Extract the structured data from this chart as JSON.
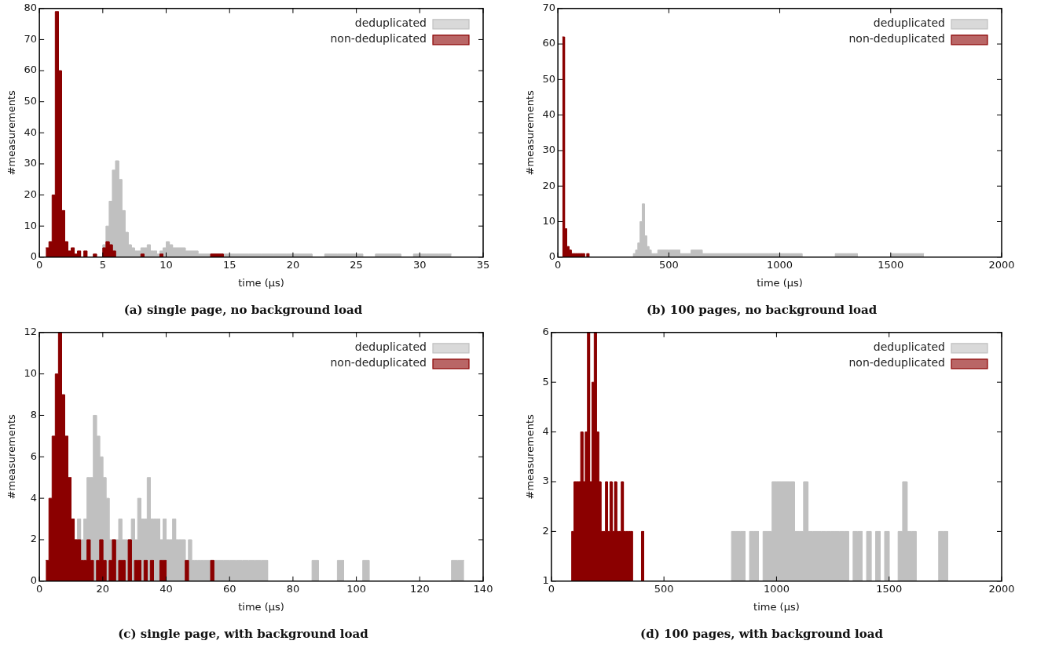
{
  "chart_data": [
    {
      "type": "histogram",
      "title": "(a) single page, no background load",
      "xlabel": "time (µs)",
      "ylabel": "#measurements",
      "legend": "top right",
      "xlim": [
        0,
        35
      ],
      "xticks": [
        0,
        5,
        10,
        15,
        20,
        25,
        30,
        35
      ],
      "ylim": [
        0,
        80
      ],
      "yticks": [
        0,
        10,
        20,
        30,
        40,
        50,
        60,
        70,
        80
      ],
      "bins": [
        0.5,
        0.75,
        1,
        1.25,
        1.5,
        1.75,
        2,
        2.25,
        2.5,
        2.75,
        3,
        3.25,
        3.5,
        3.75,
        4,
        4.25,
        4.5,
        4.75,
        5,
        5.25,
        5.5,
        5.75,
        6,
        6.25,
        6.5,
        6.75,
        7,
        7.25,
        7.5,
        7.75,
        8,
        8.25,
        8.5,
        8.75,
        9,
        9.25,
        9.5,
        9.75,
        10,
        10.25,
        10.5,
        11.5,
        12.5,
        13.5,
        14.5,
        15.5,
        16.5,
        17.5,
        18.5,
        19.5,
        20.5,
        21.5,
        22.5,
        23.5,
        24.5,
        25.5,
        26.5,
        27.5,
        28.5,
        29.5,
        30.5,
        31.5,
        32.5
      ],
      "series": [
        {
          "name": "deduplicated",
          "color": "#c0c0c0",
          "values": [
            0,
            0,
            0,
            0,
            0,
            0,
            0,
            0,
            0,
            0,
            0,
            0,
            0,
            0,
            0,
            0,
            0,
            0,
            4,
            10,
            18,
            28,
            31,
            25,
            15,
            8,
            4,
            3,
            2,
            2,
            3,
            3,
            4,
            2,
            2,
            1,
            2,
            3,
            5,
            4,
            3,
            2,
            1,
            1,
            1,
            1,
            1,
            1,
            1,
            1,
            1,
            0,
            1,
            1,
            1,
            0,
            1,
            1,
            0,
            1,
            1,
            1
          ]
        },
        {
          "name": "non-deduplicated",
          "color": "#8b0000",
          "values": [
            3,
            5,
            20,
            79,
            60,
            15,
            5,
            2,
            3,
            1,
            2,
            0,
            2,
            0,
            0,
            1,
            0,
            0,
            3,
            5,
            4,
            2,
            0,
            0,
            0,
            0,
            0,
            0,
            0,
            0,
            1,
            0,
            0,
            0,
            0,
            0,
            1,
            0,
            0,
            0,
            0,
            0,
            0,
            1,
            0,
            0,
            0,
            0,
            0,
            0,
            0,
            0,
            0,
            0,
            0,
            0,
            0,
            0,
            0,
            0,
            0,
            0
          ]
        }
      ]
    },
    {
      "type": "histogram",
      "title": "(b) 100 pages, no background load",
      "xlabel": "time (µs)",
      "ylabel": "#measurements",
      "legend": "top right",
      "xlim": [
        0,
        2000
      ],
      "xticks": [
        0,
        500,
        1000,
        1500,
        2000
      ],
      "ylim": [
        0,
        70
      ],
      "yticks": [
        0,
        10,
        20,
        30,
        40,
        50,
        60,
        70
      ],
      "bins": [
        20,
        30,
        40,
        50,
        60,
        70,
        80,
        90,
        100,
        110,
        120,
        130,
        140,
        150,
        330,
        340,
        350,
        360,
        370,
        380,
        390,
        400,
        410,
        420,
        430,
        440,
        450,
        500,
        550,
        600,
        650,
        700,
        750,
        800,
        850,
        900,
        950,
        1000,
        1050,
        1100,
        1150,
        1200,
        1250,
        1300,
        1350,
        1400,
        1450,
        1500,
        1550,
        1600,
        1650
      ],
      "series": [
        {
          "name": "deduplicated",
          "color": "#c0c0c0",
          "values": [
            0,
            0,
            0,
            0,
            0,
            0,
            0,
            0,
            0,
            0,
            0,
            0,
            0,
            0,
            0,
            1,
            2,
            4,
            10,
            15,
            6,
            3,
            2,
            1,
            1,
            1,
            2,
            2,
            1,
            2,
            1,
            1,
            1,
            1,
            1,
            1,
            1,
            1,
            1,
            0,
            0,
            0,
            1,
            1,
            0,
            0,
            0,
            1,
            1,
            1
          ]
        },
        {
          "name": "non-deduplicated",
          "color": "#8b0000",
          "values": [
            62,
            8,
            3,
            2,
            1,
            1,
            1,
            1,
            1,
            1,
            0,
            1,
            0,
            0,
            0,
            0,
            0,
            0,
            0,
            0,
            0,
            0,
            0,
            0,
            0,
            0,
            0,
            0,
            0,
            0,
            0,
            0,
            0,
            0,
            0,
            0,
            0,
            0,
            0,
            0,
            0,
            0,
            0,
            0,
            0,
            0,
            0,
            0,
            0,
            0
          ]
        }
      ]
    },
    {
      "type": "histogram",
      "title": "(c) single page, with background load",
      "xlabel": "time (µs)",
      "ylabel": "#measurements",
      "legend": "top right",
      "xlim": [
        0,
        140
      ],
      "xticks": [
        0,
        20,
        40,
        60,
        80,
        100,
        120,
        140
      ],
      "ylim": [
        0,
        12
      ],
      "yticks": [
        0,
        2,
        4,
        6,
        8,
        10,
        12
      ],
      "bins": [
        2,
        3,
        4,
        5,
        6,
        7,
        8,
        9,
        10,
        11,
        12,
        13,
        14,
        15,
        16,
        17,
        18,
        19,
        20,
        21,
        22,
        23,
        24,
        25,
        26,
        27,
        28,
        29,
        30,
        31,
        32,
        33,
        34,
        35,
        36,
        37,
        38,
        39,
        40,
        41,
        42,
        43,
        44,
        45,
        46,
        47,
        48,
        49,
        50,
        51,
        52,
        53,
        54,
        55,
        56,
        58,
        60,
        62,
        64,
        66,
        68,
        70,
        72,
        74,
        76,
        78,
        80,
        82,
        84,
        86,
        88,
        90,
        92,
        94,
        96,
        98,
        100,
        102,
        104,
        106,
        108,
        110,
        112,
        114,
        116,
        118,
        120,
        122,
        124,
        126,
        128,
        130,
        132,
        134
      ],
      "series": [
        {
          "name": "deduplicated",
          "color": "#c0c0c0",
          "values": [
            0,
            0,
            0,
            0,
            0,
            0,
            0,
            0,
            0,
            2,
            3,
            2,
            3,
            5,
            5,
            8,
            7,
            6,
            5,
            4,
            2,
            2,
            2,
            3,
            2,
            2,
            2,
            3,
            2,
            4,
            3,
            3,
            5,
            3,
            3,
            3,
            2,
            3,
            2,
            2,
            3,
            2,
            2,
            2,
            1,
            2,
            1,
            1,
            1,
            1,
            1,
            1,
            1,
            1,
            1,
            1,
            1,
            1,
            1,
            1,
            1,
            1,
            0,
            0,
            0,
            0,
            0,
            0,
            0,
            1,
            0,
            0,
            0,
            1,
            0,
            0,
            0,
            1,
            0,
            0,
            0,
            0,
            0,
            0,
            0,
            0,
            0,
            0,
            0,
            0,
            0,
            1,
            1
          ]
        },
        {
          "name": "non-deduplicated",
          "color": "#8b0000",
          "values": [
            1,
            4,
            7,
            10,
            12,
            9,
            7,
            5,
            3,
            2,
            2,
            1,
            1,
            2,
            1,
            0,
            1,
            2,
            1,
            0,
            1,
            2,
            0,
            1,
            1,
            0,
            2,
            0,
            1,
            1,
            0,
            1,
            0,
            1,
            0,
            0,
            1,
            1,
            0,
            0,
            0,
            0,
            0,
            0,
            1,
            0,
            0,
            0,
            0,
            0,
            0,
            0,
            1,
            0,
            0,
            0,
            0,
            0,
            0,
            0,
            0,
            0,
            0,
            0,
            0,
            0,
            0,
            0,
            0,
            0,
            0,
            0,
            0,
            0,
            0,
            0,
            0,
            0,
            0,
            0,
            0,
            0,
            0,
            0,
            0,
            0,
            0,
            0,
            0,
            0,
            0,
            0,
            0
          ]
        }
      ]
    },
    {
      "type": "histogram",
      "title": "(d) 100 pages, with background load",
      "xlabel": "time (µs)",
      "ylabel": "#measurements",
      "legend": "top right",
      "xlim": [
        0,
        2000
      ],
      "xticks": [
        0,
        500,
        1000,
        1500,
        2000
      ],
      "ylim": [
        1,
        6
      ],
      "yticks": [
        1,
        2,
        3,
        4,
        5,
        6
      ],
      "bins": [
        80,
        90,
        100,
        110,
        120,
        130,
        140,
        150,
        160,
        170,
        180,
        190,
        200,
        210,
        220,
        230,
        240,
        250,
        260,
        270,
        280,
        290,
        300,
        310,
        320,
        330,
        340,
        350,
        360,
        370,
        380,
        390,
        400,
        410,
        420,
        800,
        820,
        840,
        860,
        880,
        900,
        920,
        940,
        960,
        980,
        1000,
        1020,
        1040,
        1060,
        1080,
        1100,
        1120,
        1140,
        1160,
        1180,
        1200,
        1220,
        1240,
        1260,
        1280,
        1300,
        1320,
        1340,
        1360,
        1380,
        1400,
        1420,
        1440,
        1460,
        1480,
        1500,
        1520,
        1540,
        1560,
        1580,
        1600,
        1620,
        1640,
        1660,
        1680,
        1700,
        1720,
        1740,
        1760,
        1780
      ],
      "series": [
        {
          "name": "deduplicated",
          "color": "#c0c0c0",
          "values": [
            1,
            1,
            1,
            1,
            1,
            1,
            1,
            1,
            1,
            1,
            1,
            1,
            1,
            1,
            1,
            1,
            1,
            1,
            1,
            1,
            1,
            1,
            1,
            1,
            1,
            1,
            1,
            1,
            1,
            1,
            1,
            1,
            1,
            1,
            1,
            2,
            2,
            2,
            1,
            2,
            2,
            1,
            2,
            2,
            3,
            3,
            3,
            3,
            3,
            2,
            2,
            3,
            2,
            2,
            2,
            2,
            2,
            2,
            2,
            2,
            2,
            1,
            2,
            2,
            1,
            2,
            1,
            2,
            1,
            2,
            1,
            1,
            2,
            3,
            2,
            2,
            1,
            1,
            1,
            1,
            1,
            2,
            2,
            1
          ]
        },
        {
          "name": "non-deduplicated",
          "color": "#8b0000",
          "values": [
            1,
            2,
            3,
            3,
            3,
            4,
            3,
            4,
            6,
            3,
            5,
            6,
            4,
            3,
            2,
            2,
            3,
            2,
            3,
            2,
            3,
            2,
            2,
            3,
            2,
            2,
            2,
            2,
            1,
            1,
            1,
            1,
            2,
            1,
            1,
            1,
            1,
            1,
            1,
            1,
            1,
            1,
            1,
            1,
            1,
            1,
            1,
            1,
            1,
            1,
            1,
            1,
            1,
            1,
            1,
            1,
            1,
            1,
            1,
            1,
            1,
            1,
            1,
            1,
            1,
            1,
            1,
            1,
            1,
            1,
            1,
            1,
            1,
            1,
            1,
            1,
            1,
            1,
            1,
            1,
            1,
            1,
            1,
            1
          ]
        }
      ]
    }
  ]
}
